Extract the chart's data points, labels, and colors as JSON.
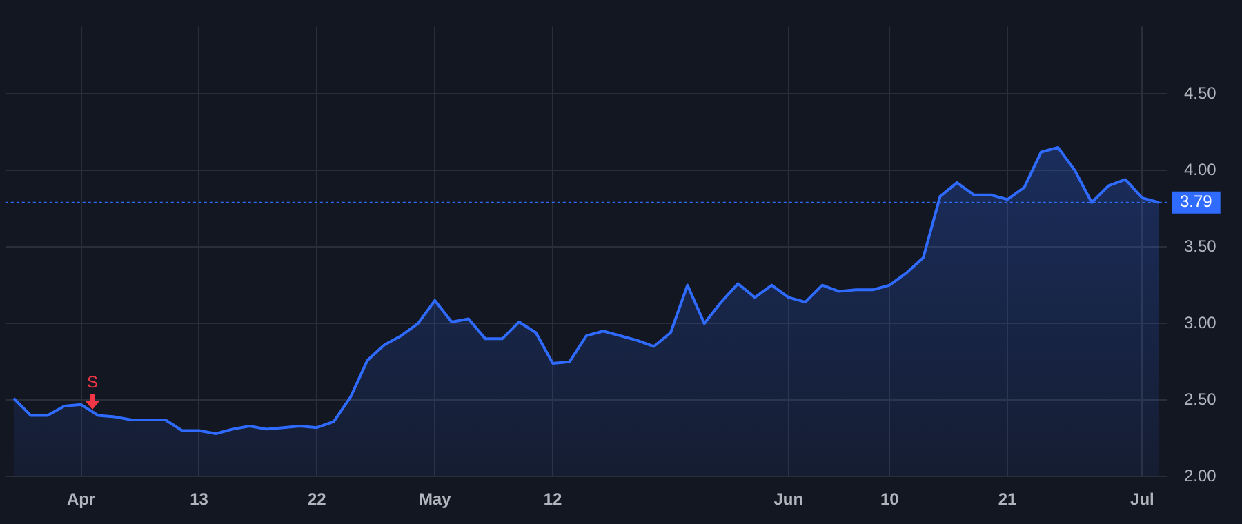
{
  "chart_data": {
    "type": "area",
    "categories": [
      null,
      null,
      null,
      null,
      "Apr",
      null,
      null,
      null,
      null,
      null,
      null,
      "13",
      null,
      null,
      null,
      null,
      null,
      null,
      "22",
      null,
      null,
      null,
      null,
      null,
      null,
      "May",
      null,
      null,
      null,
      null,
      null,
      null,
      "12",
      null,
      null,
      null,
      null,
      null,
      null,
      null,
      null,
      null,
      null,
      null,
      null,
      null,
      "Jun",
      null,
      null,
      null,
      null,
      null,
      "10",
      null,
      null,
      null,
      null,
      null,
      null,
      "21",
      null,
      null,
      null,
      null,
      null,
      null,
      null,
      "Jul",
      null
    ],
    "series": [
      {
        "color": "#2f6bff",
        "values": [
          2.51,
          2.4,
          2.4,
          2.46,
          2.47,
          2.4,
          2.39,
          2.37,
          2.37,
          2.37,
          2.3,
          2.3,
          2.28,
          2.31,
          2.33,
          2.31,
          2.32,
          2.33,
          2.32,
          2.36,
          2.52,
          2.76,
          2.86,
          2.92,
          3.0,
          3.15,
          3.01,
          3.03,
          2.9,
          2.9,
          3.01,
          2.94,
          2.74,
          2.75,
          2.92,
          2.95,
          2.92,
          2.89,
          2.85,
          2.94,
          3.25,
          3.0,
          3.14,
          3.26,
          3.17,
          3.25,
          3.17,
          3.14,
          3.25,
          3.21,
          3.22,
          3.22,
          3.25,
          3.33,
          3.43,
          3.83,
          3.92,
          3.84,
          3.84,
          3.81,
          3.89,
          4.12,
          4.15,
          4.0,
          3.79,
          3.9,
          3.94,
          3.82,
          3.79
        ]
      }
    ],
    "ylim": [
      2.0,
      4.94
    ],
    "yticks": [
      {
        "value": 2,
        "label": "2.00"
      },
      {
        "value": 2.5,
        "label": "2.50"
      },
      {
        "value": 3,
        "label": "3.00"
      },
      {
        "value": 3.5,
        "label": "3.50"
      },
      {
        "value": 4,
        "label": "4.00"
      },
      {
        "value": 4.5,
        "label": "4.50"
      }
    ],
    "ref_lines": [
      {
        "axis": "y",
        "value": 3.79,
        "label": "3.79",
        "color": "#2f6bff",
        "line_style": "dotted"
      }
    ],
    "annotations": [
      "S"
    ],
    "grid": true,
    "legend": false
  }
}
